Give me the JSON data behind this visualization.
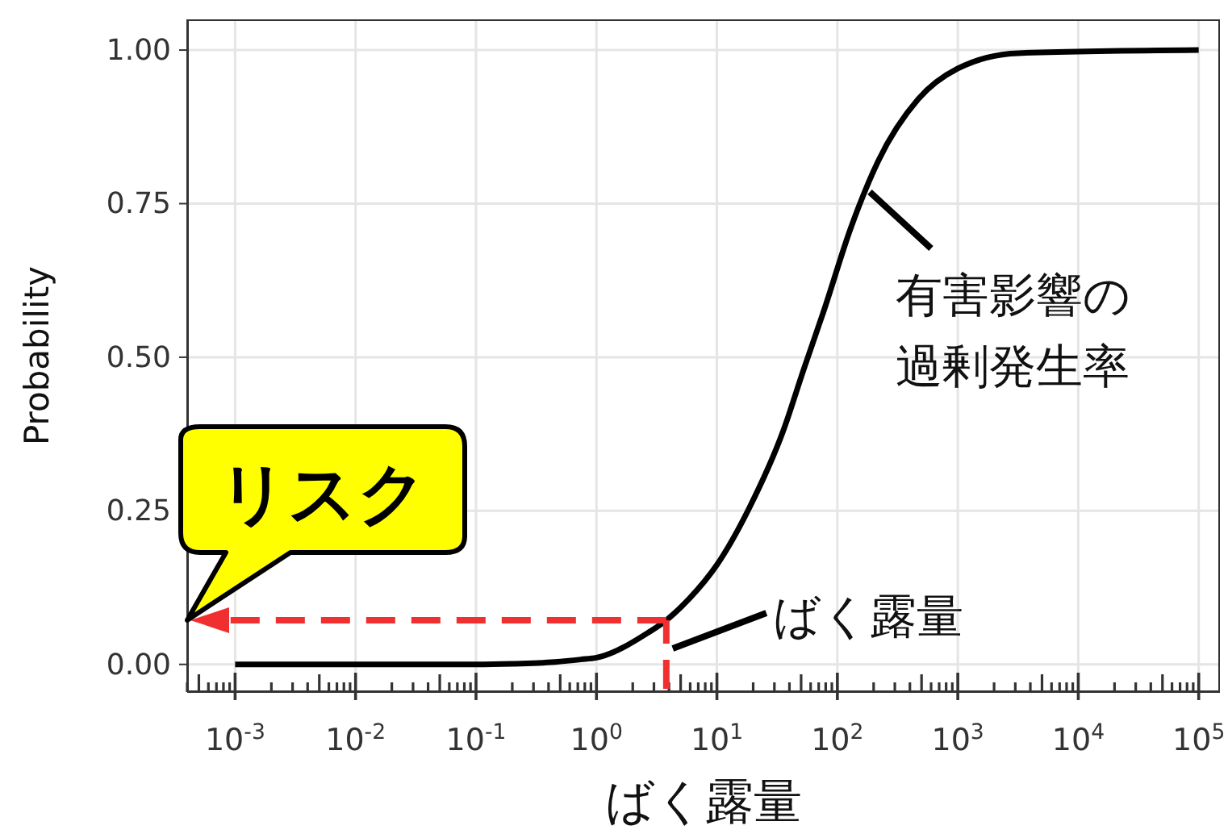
{
  "chart_data": {
    "type": "line",
    "xlabel": "ばく露量",
    "ylabel": "Probability",
    "log": "x",
    "grid": true,
    "marker": "none",
    "line_style": "solid",
    "color": "#000000",
    "x": [
      0.001,
      0.01,
      0.1,
      0.2,
      0.45,
      0.74,
      1,
      2.7,
      3.8,
      5.9,
      10,
      18.6,
      35.5,
      52.5,
      77.6,
      129,
      219,
      468,
      1000,
      3162,
      100000
    ],
    "values": [
      0,
      0,
      0,
      0.001,
      0.004,
      0.008,
      0.011,
      0.052,
      0.072,
      0.107,
      0.162,
      0.255,
      0.38,
      0.48,
      0.577,
      0.71,
      0.82,
      0.92,
      0.97,
      0.995,
      1
    ],
    "xlim": [
      0.0004,
      150000
    ],
    "ylim": [
      -0.045,
      1.05
    ],
    "yticks": [
      {
        "value": 0,
        "label": "0.00"
      },
      {
        "value": 0.25,
        "label": "0.25"
      },
      {
        "value": 0.5,
        "label": "0.50"
      },
      {
        "value": 0.75,
        "label": "0.75"
      },
      {
        "value": 1,
        "label": "1.00"
      }
    ],
    "xticks": [
      {
        "value": 0.0004,
        "label": null
      },
      {
        "value": 0.0005,
        "label": null
      },
      {
        "value": 0.0006,
        "label": null
      },
      {
        "value": 0.0007,
        "label": null
      },
      {
        "value": 0.0008,
        "label": null
      },
      {
        "value": 0.0009,
        "label": null
      },
      {
        "value": 0.001,
        "label": "10$^{-3}$"
      },
      {
        "value": 0.002,
        "label": null
      },
      {
        "value": 0.003,
        "label": null
      },
      {
        "value": 0.004,
        "label": null
      },
      {
        "value": 0.005,
        "label": null
      },
      {
        "value": 0.006,
        "label": null
      },
      {
        "value": 0.007,
        "label": null
      },
      {
        "value": 0.008,
        "label": null
      },
      {
        "value": 0.009,
        "label": null
      },
      {
        "value": 0.01,
        "label": "10$^{-2}$"
      },
      {
        "value": 0.02,
        "label": null
      },
      {
        "value": 0.03,
        "label": null
      },
      {
        "value": 0.04,
        "label": null
      },
      {
        "value": 0.05,
        "label": null
      },
      {
        "value": 0.06,
        "label": null
      },
      {
        "value": 0.07,
        "label": null
      },
      {
        "value": 0.08,
        "label": null
      },
      {
        "value": 0.09,
        "label": null
      },
      {
        "value": 0.1,
        "label": "10$^{-1}$"
      },
      {
        "value": 0.2,
        "label": null
      },
      {
        "value": 0.3,
        "label": null
      },
      {
        "value": 0.4,
        "label": null
      },
      {
        "value": 0.5,
        "label": null
      },
      {
        "value": 0.6,
        "label": null
      },
      {
        "value": 0.7,
        "label": null
      },
      {
        "value": 0.8,
        "label": null
      },
      {
        "value": 0.9,
        "label": null
      },
      {
        "value": 1,
        "label": "10$^{0}$"
      },
      {
        "value": 2,
        "label": null
      },
      {
        "value": 3,
        "label": null
      },
      {
        "value": 4,
        "label": null
      },
      {
        "value": 5,
        "label": null
      },
      {
        "value": 6,
        "label": null
      },
      {
        "value": 7,
        "label": null
      },
      {
        "value": 8,
        "label": null
      },
      {
        "value": 9,
        "label": null
      },
      {
        "value": 10,
        "label": "10$^{1}$"
      },
      {
        "value": 20,
        "label": null
      },
      {
        "value": 30,
        "label": null
      },
      {
        "value": 40,
        "label": null
      },
      {
        "value": 50,
        "label": null
      },
      {
        "value": 60,
        "label": null
      },
      {
        "value": 70,
        "label": null
      },
      {
        "value": 80,
        "label": null
      },
      {
        "value": 90,
        "label": null
      },
      {
        "value": 100,
        "label": "10$^{2}$"
      },
      {
        "value": 200,
        "label": null
      },
      {
        "value": 300,
        "label": null
      },
      {
        "value": 400,
        "label": null
      },
      {
        "value": 500,
        "label": null
      },
      {
        "value": 600,
        "label": null
      },
      {
        "value": 700,
        "label": null
      },
      {
        "value": 800,
        "label": null
      },
      {
        "value": 900,
        "label": null
      },
      {
        "value": 1000,
        "label": "10$^{3}$"
      },
      {
        "value": 2000,
        "label": null
      },
      {
        "value": 3000,
        "label": null
      },
      {
        "value": 4000,
        "label": null
      },
      {
        "value": 5000,
        "label": null
      },
      {
        "value": 6000,
        "label": null
      },
      {
        "value": 7000,
        "label": null
      },
      {
        "value": 8000,
        "label": null
      },
      {
        "value": 9000,
        "label": null
      },
      {
        "value": 10000,
        "label": "10$^{4}$"
      },
      {
        "value": 20000,
        "label": null
      },
      {
        "value": 30000,
        "label": null
      },
      {
        "value": 40000,
        "label": null
      },
      {
        "value": 50000,
        "label": null
      },
      {
        "value": 60000,
        "label": null
      },
      {
        "value": 70000,
        "label": null
      },
      {
        "value": 80000,
        "label": null
      },
      {
        "value": 90000,
        "label": null
      },
      {
        "value": 100000,
        "label": "10$^{5}$"
      }
    ],
    "ref_lines": [
      {
        "axis": "x",
        "value": 3.8,
        "label": "ばく露量",
        "color": "#f03030",
        "line_style": "dashed"
      },
      {
        "axis": "y",
        "value": 0.072,
        "label": "リスク",
        "color": "#f03030",
        "line_style": "dashed"
      }
    ],
    "annotations": [
      "有害影響の過剰発生率"
    ]
  }
}
